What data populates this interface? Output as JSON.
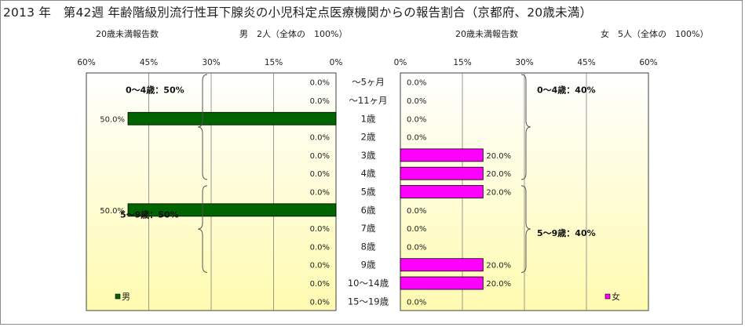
{
  "title": "2013 年　第42週 年齢階級別流行性耳下腺炎の小児科定点医療機関からの報告割合（京都府、20歳未満）",
  "left_subtitle": {
    "label": "20歳未満報告数",
    "detail": "男　2人（全体の　100%）"
  },
  "right_subtitle": {
    "label": "20歳未満報告数",
    "detail": "女　5人（全体の　100%）"
  },
  "colors": {
    "male": "#006400",
    "female": "#FF00FF",
    "plot_top": "#FFFFFF",
    "plot_bottom": "#FFFBB0",
    "grid": "#808080"
  },
  "chart_data": [
    {
      "type": "bar",
      "orientation": "horizontal",
      "direction": "right-to-left",
      "series": [
        {
          "name": "男",
          "values": [
            0,
            0,
            50,
            0,
            0,
            0,
            0,
            50,
            0,
            0,
            0,
            0,
            0
          ]
        }
      ],
      "categories": [
        "～5ヶ月",
        "～11ヶ月",
        "1歳",
        "2歳",
        "3歳",
        "4歳",
        "5歳",
        "6歳",
        "7歳",
        "8歳",
        "9歳",
        "10～14歳",
        "15～19歳"
      ],
      "value_labels": [
        "0.0%",
        "0.0%",
        "50.0%",
        "0.0%",
        "0.0%",
        "0.0%",
        "0.0%",
        "50.0%",
        "0.0%",
        "0.0%",
        "0.0%",
        "0.0%",
        "0.0%"
      ],
      "xlim": [
        0,
        60
      ],
      "ticks": [
        "60%",
        "45%",
        "30%",
        "15%",
        "0%"
      ],
      "group_labels": [
        "0～4歳：50%",
        "5～9歳：50%"
      ],
      "legend": "bottom-left",
      "grid": true
    },
    {
      "type": "bar",
      "orientation": "horizontal",
      "direction": "left-to-right",
      "series": [
        {
          "name": "女",
          "values": [
            0,
            0,
            0,
            0,
            20,
            20,
            20,
            0,
            0,
            0,
            20,
            20,
            0
          ]
        }
      ],
      "categories": [
        "～5ヶ月",
        "～11ヶ月",
        "1歳",
        "2歳",
        "3歳",
        "4歳",
        "5歳",
        "6歳",
        "7歳",
        "8歳",
        "9歳",
        "10～14歳",
        "15～19歳"
      ],
      "value_labels": [
        "0.0%",
        "0.0%",
        "0.0%",
        "0.0%",
        "20.0%",
        "20.0%",
        "20.0%",
        "0.0%",
        "0.0%",
        "0.0%",
        "20.0%",
        "20.0%",
        "0.0%"
      ],
      "xlim": [
        0,
        60
      ],
      "ticks": [
        "0%",
        "15%",
        "30%",
        "45%",
        "60%"
      ],
      "group_labels": [
        "0～4歳：40%",
        "5～9歳：40%"
      ],
      "legend": "bottom-right",
      "grid": true
    }
  ]
}
